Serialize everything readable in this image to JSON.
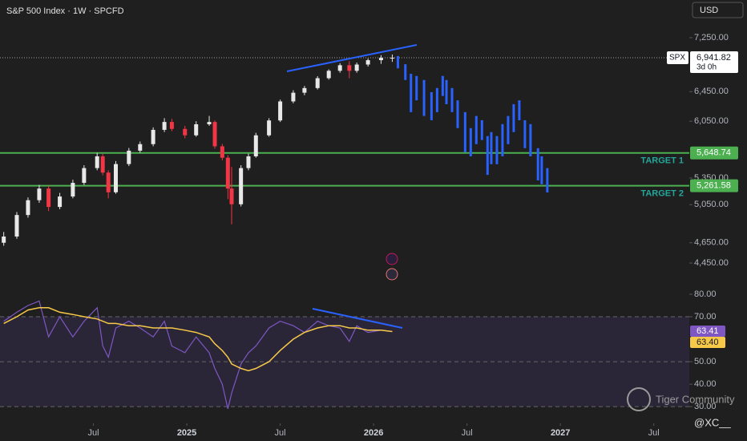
{
  "chart_data": [
    {
      "type": "candlestick",
      "title": "S&P 500 Index · 1W · SPCFD",
      "currency": "USD",
      "symbol": "SPX",
      "countdown": "3d 0h",
      "log": true,
      "grid": false,
      "xlim": [
        2024.0,
        2027.69
      ],
      "ylim": [
        4210,
        7866
      ],
      "yticks": [
        {
          "value": 7250,
          "label": "7,250.00"
        },
        {
          "value": 6450,
          "label": "6,450.00"
        },
        {
          "value": 6050,
          "label": "6,050.00"
        },
        {
          "value": 5350,
          "label": "5,350.00"
        },
        {
          "value": 5050,
          "label": "5,050.00"
        },
        {
          "value": 4650,
          "label": "4,650.00"
        },
        {
          "value": 4450,
          "label": "4,450.00"
        }
      ],
      "up_color": "#e8e8e8",
      "down_color": "#f23645",
      "x": [
        2024.02,
        2024.09,
        2024.15,
        2024.21,
        2024.26,
        2024.32,
        2024.39,
        2024.45,
        2024.52,
        2024.55,
        2024.58,
        2024.62,
        2024.69,
        2024.75,
        2024.82,
        2024.88,
        2024.92,
        2024.99,
        2025.05,
        2025.12,
        2025.15,
        2025.19,
        2025.22,
        2025.24,
        2025.29,
        2025.33,
        2025.37,
        2025.44,
        2025.5,
        2025.57,
        2025.63,
        2025.7,
        2025.76,
        2025.82,
        2025.87,
        2025.91,
        2025.97,
        2026.04,
        2026.1
      ],
      "open": [
        4650,
        4713,
        4938,
        5099,
        5229,
        5025,
        5140,
        5294,
        5466,
        5607,
        5413,
        5187,
        5514,
        5676,
        5757,
        5938,
        6040,
        5950,
        5868,
        6010,
        6040,
        5730,
        5590,
        5229,
        5054,
        5466,
        5607,
        5868,
        6060,
        6315,
        6435,
        6500,
        6641,
        6748,
        6830,
        6748,
        6840,
        6905,
        6940
      ],
      "high": [
        4760,
        4970,
        5130,
        5270,
        5260,
        5180,
        5330,
        5500,
        5650,
        5640,
        5440,
        5550,
        5710,
        5790,
        5970,
        6090,
        6080,
        5990,
        6050,
        6120,
        6060,
        5760,
        5620,
        5480,
        5500,
        5640,
        5900,
        6090,
        6340,
        6470,
        6530,
        6670,
        6770,
        6860,
        6890,
        6870,
        6930,
        6980,
        6990
      ],
      "low": [
        4620,
        4690,
        4910,
        5070,
        4980,
        5000,
        5120,
        5270,
        5440,
        5380,
        5120,
        5170,
        5490,
        5650,
        5730,
        5910,
        5920,
        5830,
        5850,
        5990,
        5700,
        5560,
        5110,
        4840,
        5030,
        5440,
        5590,
        5850,
        6040,
        6290,
        6400,
        6480,
        6620,
        6720,
        6640,
        6720,
        6810,
        6850,
        6880
      ],
      "close": [
        4713,
        4938,
        5099,
        5229,
        5025,
        5140,
        5294,
        5466,
        5607,
        5413,
        5187,
        5514,
        5676,
        5757,
        5938,
        6040,
        5950,
        5868,
        6010,
        6040,
        5730,
        5590,
        5229,
        5054,
        5466,
        5607,
        5868,
        6060,
        6315,
        6435,
        6500,
        6641,
        6748,
        6830,
        6748,
        6840,
        6905,
        6940,
        6941.82
      ],
      "last": {
        "value": 6941.82,
        "label": "6,941.82"
      },
      "projection": {
        "color": "#2962ff",
        "x": [
          2026.13,
          2026.17,
          2026.2,
          2026.23,
          2026.27,
          2026.31,
          2026.34,
          2026.37,
          2026.39,
          2026.42,
          2026.45,
          2026.49,
          2026.52,
          2026.55,
          2026.58,
          2026.61,
          2026.63,
          2026.66,
          2026.69,
          2026.72,
          2026.75,
          2026.78,
          2026.81,
          2026.84,
          2026.88,
          2026.9,
          2026.93
        ],
        "high": [
          6967,
          6845,
          6704,
          6673,
          6615,
          6443,
          6501,
          6673,
          6615,
          6501,
          6330,
          6170,
          5960,
          6119,
          6063,
          5858,
          5909,
          5858,
          6012,
          6119,
          6277,
          6330,
          6063,
          6012,
          5707,
          5607,
          5466
        ],
        "low": [
          6784,
          6615,
          6170,
          6330,
          6119,
          6063,
          6170,
          6390,
          6277,
          6170,
          5960,
          5657,
          5607,
          5757,
          5808,
          5386,
          5512,
          5512,
          5607,
          5757,
          5909,
          6063,
          5707,
          5607,
          5322,
          5278,
          5185
        ]
      },
      "hlines": [
        {
          "value": 5648.74,
          "value_label": "5,648.74",
          "label": "TARGET 1",
          "color": "#4caf50",
          "text_color": "#26a69a"
        },
        {
          "value": 5261.58,
          "value_label": "5,261.58",
          "label": "TARGET 2",
          "color": "#4caf50",
          "text_color": "#26a69a"
        }
      ]
    },
    {
      "type": "line",
      "watermark": "Tiger Community",
      "author": "@XC__",
      "xlim": [
        2024.0,
        2027.69
      ],
      "ylim": [
        25.4,
        82.5
      ],
      "yticks": [
        {
          "value": 80,
          "label": "80.00"
        },
        {
          "value": 70,
          "label": "70.00"
        },
        {
          "value": 50,
          "label": "50.00"
        },
        {
          "value": 40,
          "label": "40.00"
        },
        {
          "value": 30,
          "label": "30.00"
        }
      ],
      "xticks": [
        {
          "value": 2024.5,
          "label": "Jul"
        },
        2025,
        {
          "value": 2025.5,
          "label": "Jul"
        },
        2026,
        {
          "value": 2026.5,
          "label": "Jul"
        },
        2027,
        {
          "value": 2027.5,
          "label": "Jul"
        }
      ],
      "band": [
        30,
        70
      ],
      "band_color": "#2a2638",
      "levels": [
        70,
        50,
        30
      ],
      "x": [
        2024.02,
        2024.09,
        2024.15,
        2024.21,
        2024.26,
        2024.32,
        2024.39,
        2024.45,
        2024.52,
        2024.55,
        2024.58,
        2024.62,
        2024.69,
        2024.75,
        2024.82,
        2024.88,
        2024.92,
        2024.99,
        2025.05,
        2025.12,
        2025.15,
        2025.19,
        2025.22,
        2025.24,
        2025.29,
        2025.33,
        2025.37,
        2025.44,
        2025.5,
        2025.57,
        2025.63,
        2025.7,
        2025.76,
        2025.82,
        2025.87,
        2025.91,
        2025.97,
        2026.04,
        2026.1
      ],
      "series": [
        {
          "color": "#7e57c2",
          "values": [
            68,
            72,
            75,
            77,
            61,
            70,
            61,
            68,
            74,
            57,
            52,
            65,
            68,
            65,
            61,
            68,
            57,
            54,
            61,
            54,
            47,
            40,
            29,
            36,
            49,
            54,
            57,
            65,
            68,
            66,
            63,
            68,
            66,
            65,
            59,
            66,
            63,
            64,
            63.41
          ]
        },
        {
          "color": "#f7c948",
          "last_label": "63.40",
          "values": [
            67,
            70,
            73,
            74,
            74,
            72,
            71,
            70,
            69,
            68,
            67,
            67,
            66,
            66,
            65,
            65,
            65,
            64,
            63,
            61,
            58,
            55,
            52,
            49,
            47,
            46,
            47,
            50,
            55,
            60,
            63,
            65,
            66,
            66,
            65,
            65,
            64,
            64,
            63.4
          ]
        }
      ]
    }
  ]
}
